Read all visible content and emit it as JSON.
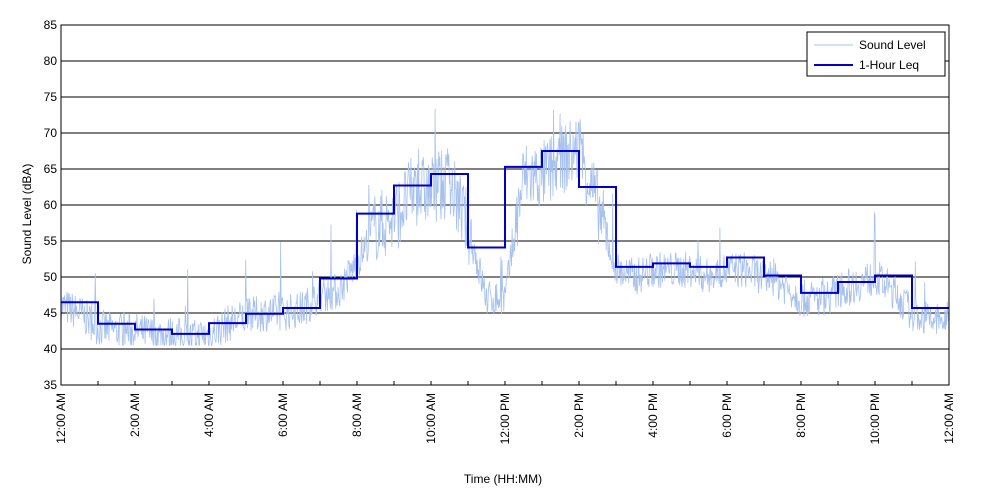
{
  "chart_data": {
    "type": "line",
    "title": "",
    "xlabel": "Time (HH:MM)",
    "ylabel": "Sound Level (dBA)",
    "xlim": [
      0,
      24
    ],
    "ylim": [
      35,
      85
    ],
    "yticks": [
      35,
      40,
      45,
      50,
      55,
      60,
      65,
      70,
      75,
      80,
      85
    ],
    "xticks": [
      {
        "hour": 0,
        "label": "12:00 AM"
      },
      {
        "hour": 2,
        "label": "2:00 AM"
      },
      {
        "hour": 4,
        "label": "4:00 AM"
      },
      {
        "hour": 6,
        "label": "6:00 AM"
      },
      {
        "hour": 8,
        "label": "8:00 AM"
      },
      {
        "hour": 10,
        "label": "10:00 AM"
      },
      {
        "hour": 12,
        "label": "12:00 PM"
      },
      {
        "hour": 14,
        "label": "2:00 PM"
      },
      {
        "hour": 16,
        "label": "4:00 PM"
      },
      {
        "hour": 18,
        "label": "6:00 PM"
      },
      {
        "hour": 20,
        "label": "8:00 PM"
      },
      {
        "hour": 22,
        "label": "10:00 PM"
      },
      {
        "hour": 24,
        "label": "12:00 AM"
      }
    ],
    "grid": "horizontal",
    "legend_position": "top-right",
    "series": [
      {
        "name": "Sound Level",
        "color": "#a7c1ef",
        "style": "thin-noisy-line",
        "x": [
          0,
          0.5,
          1,
          1.5,
          2,
          2.5,
          3,
          3.5,
          4,
          4.5,
          5,
          5.5,
          6,
          6.5,
          7,
          7.5,
          8,
          8.5,
          9,
          9.5,
          10,
          10.5,
          11,
          11.5,
          12,
          12.5,
          13,
          13.5,
          14,
          14.5,
          15,
          15.5,
          16,
          16.5,
          17,
          17.5,
          18,
          18.5,
          19,
          19.5,
          20,
          20.5,
          21,
          21.5,
          22,
          22.5,
          23,
          23.5,
          24
        ],
        "y": [
          46,
          45,
          43,
          42.5,
          42.5,
          42,
          42,
          41.5,
          42,
          43.5,
          44.5,
          45,
          45,
          45.5,
          47.5,
          48,
          52,
          57,
          58,
          62,
          62,
          63,
          57,
          47,
          47,
          64,
          64,
          66,
          68,
          60,
          51,
          50,
          51,
          51,
          51,
          50,
          51,
          51,
          50,
          49,
          47,
          47,
          48,
          49,
          50,
          48,
          45,
          44,
          44
        ]
      },
      {
        "name": "1-Hour Leq",
        "color": "#0000cc",
        "style": "step",
        "x": [
          0,
          1,
          2,
          3,
          4,
          5,
          6,
          7,
          8,
          9,
          10,
          11,
          12,
          13,
          14,
          15,
          16,
          17,
          18,
          19,
          20,
          21,
          22,
          23
        ],
        "y": [
          46.5,
          43.5,
          42.7,
          42.1,
          43.6,
          44.9,
          45.7,
          49.8,
          58.8,
          62.7,
          64.3,
          54.1,
          65.3,
          67.5,
          62.5,
          51.4,
          51.9,
          51.4,
          52.7,
          50.2,
          47.8,
          49.3,
          50.2,
          45.7
        ]
      }
    ]
  }
}
